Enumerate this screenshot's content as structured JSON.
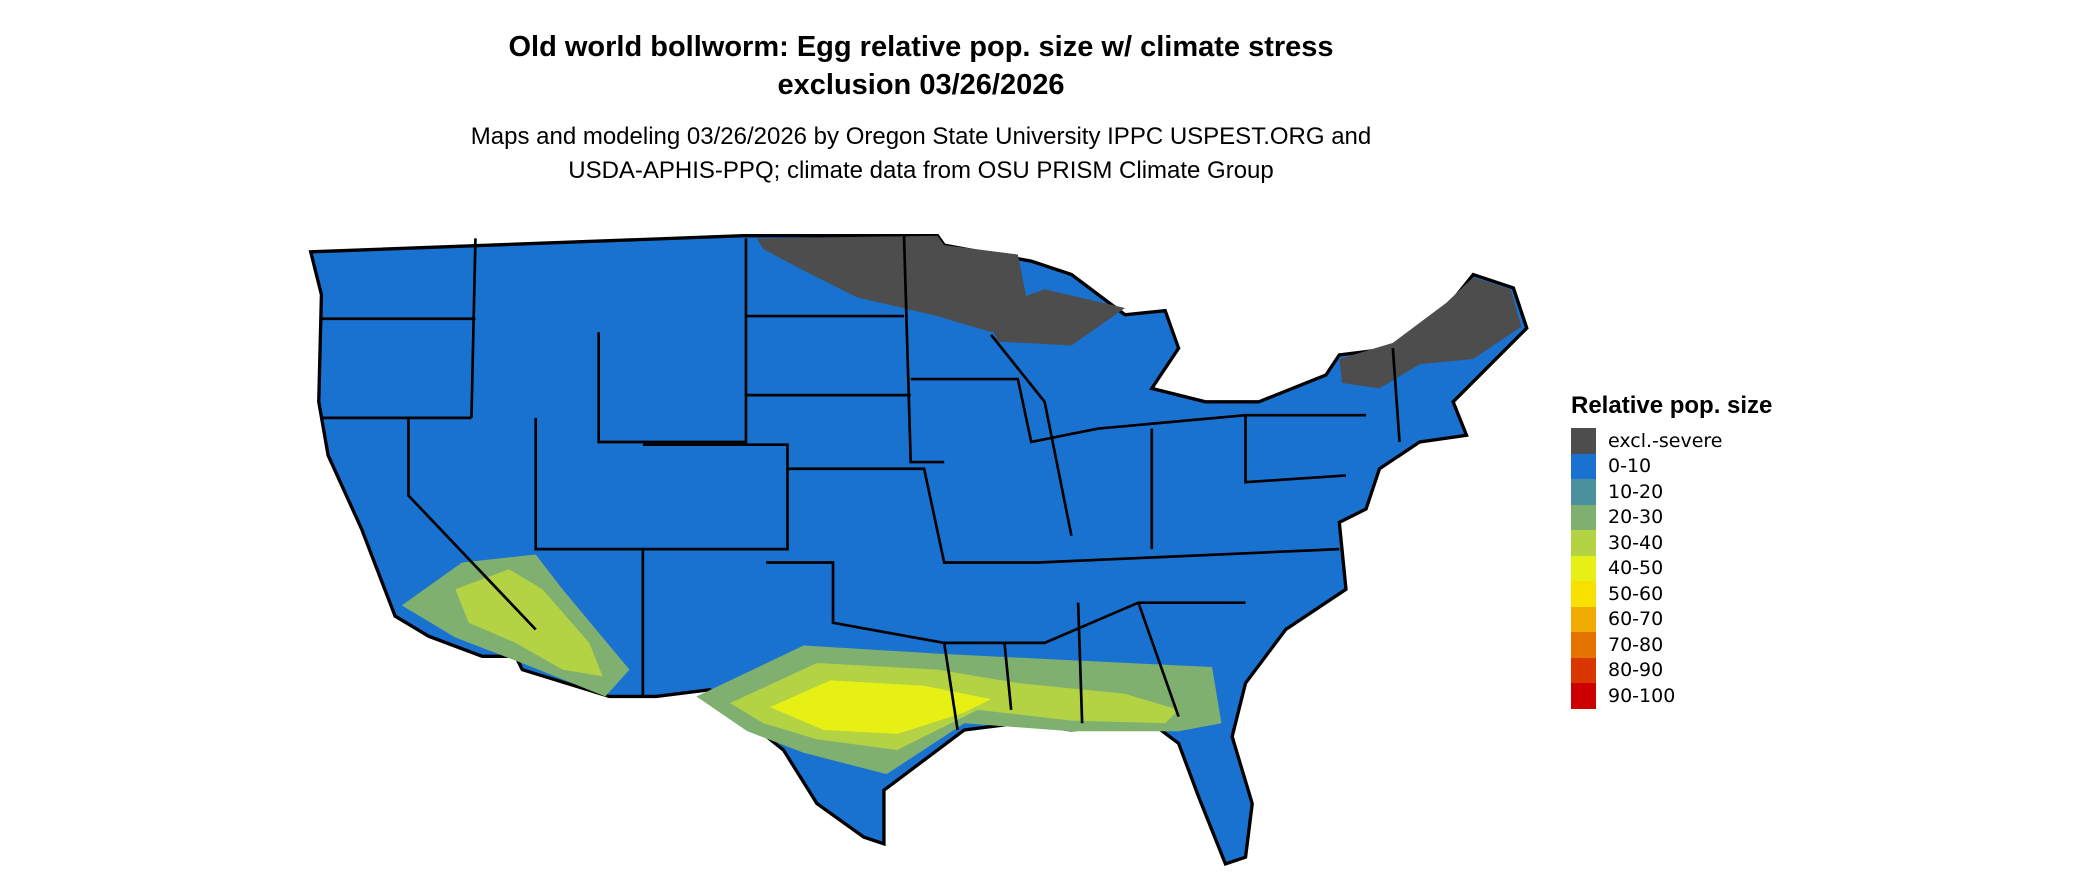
{
  "title": {
    "line1": "Old world bollworm: Egg relative pop. size w/ climate stress",
    "line2": "exclusion 03/26/2026"
  },
  "subtitle": {
    "line1": "Maps and modeling 03/26/2026 by Oregon State University IPPC USPEST.ORG and",
    "line2": "USDA-APHIS-PPQ; climate data from OSU PRISM Climate Group"
  },
  "map": {
    "region": "Contiguous United States",
    "colors": {
      "background": "#1a72d0",
      "excluded": "#4d4d4d",
      "low_green": "#7fb070",
      "mid_yellow_green": "#b3d244",
      "high_yellow": "#e6f014",
      "border": "#000000"
    }
  },
  "legend": {
    "title": "Relative pop. size",
    "items": [
      {
        "label": "excl.-severe",
        "color": "#4d4d4d"
      },
      {
        "label": "0-10",
        "color": "#1a72d0"
      },
      {
        "label": "10-20",
        "color": "#4a919d"
      },
      {
        "label": "20-30",
        "color": "#7fb070"
      },
      {
        "label": "30-40",
        "color": "#b3d244"
      },
      {
        "label": "40-50",
        "color": "#e6f014"
      },
      {
        "label": "50-60",
        "color": "#f8e000"
      },
      {
        "label": "60-70",
        "color": "#f0ac00"
      },
      {
        "label": "70-80",
        "color": "#e57300"
      },
      {
        "label": "80-90",
        "color": "#da3600"
      },
      {
        "label": "90-100",
        "color": "#cc0000"
      }
    ]
  }
}
